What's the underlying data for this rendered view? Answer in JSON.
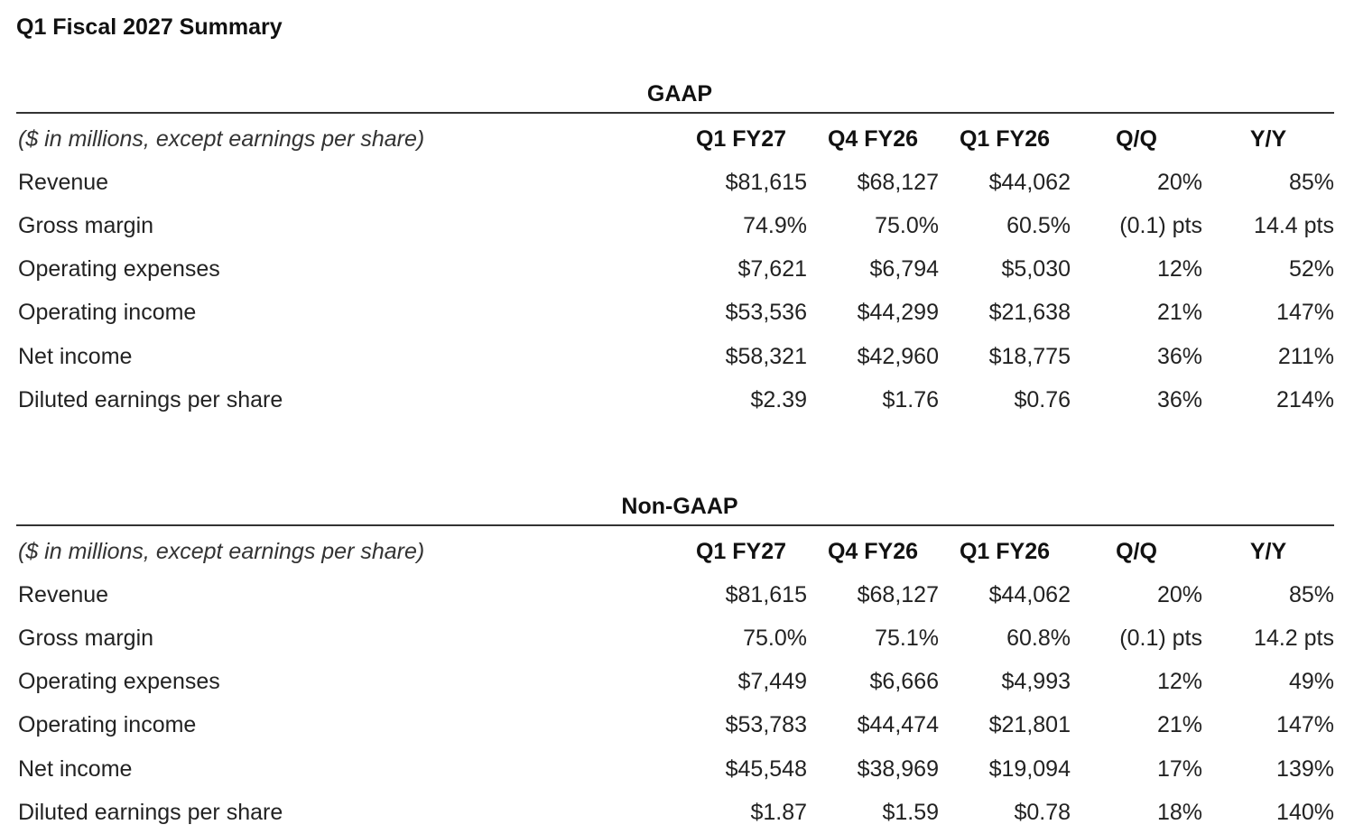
{
  "page_title": "Q1 Fiscal 2027 Summary",
  "sections": [
    {
      "heading": "GAAP",
      "units_label": "($ in millions, except earnings per share)",
      "columns": [
        "Q1 FY27",
        "Q4 FY26",
        "Q1 FY26",
        "Q/Q",
        "Y/Y"
      ],
      "rows": [
        {
          "label": "Revenue",
          "values": [
            "$81,615",
            "$68,127",
            "$44,062",
            "20%",
            "85%"
          ]
        },
        {
          "label": "Gross margin",
          "values": [
            "74.9%",
            "75.0%",
            "60.5%",
            "(0.1) pts",
            "14.4 pts"
          ]
        },
        {
          "label": "Operating expenses",
          "values": [
            "$7,621",
            "$6,794",
            "$5,030",
            "12%",
            "52%"
          ]
        },
        {
          "label": "Operating income",
          "values": [
            "$53,536",
            "$44,299",
            "$21,638",
            "21%",
            "147%"
          ]
        },
        {
          "label": "Net income",
          "values": [
            "$58,321",
            "$42,960",
            "$18,775",
            "36%",
            "211%"
          ]
        },
        {
          "label": "Diluted earnings per share",
          "values": [
            "$2.39",
            "$1.76",
            "$0.76",
            "36%",
            "214%"
          ]
        }
      ]
    },
    {
      "heading": "Non-GAAP",
      "units_label": "($ in millions, except earnings per share)",
      "columns": [
        "Q1 FY27",
        "Q4 FY26",
        "Q1 FY26",
        "Q/Q",
        "Y/Y"
      ],
      "rows": [
        {
          "label": "Revenue",
          "values": [
            "$81,615",
            "$68,127",
            "$44,062",
            "20%",
            "85%"
          ]
        },
        {
          "label": "Gross margin",
          "values": [
            "75.0%",
            "75.1%",
            "60.8%",
            "(0.1) pts",
            "14.2 pts"
          ]
        },
        {
          "label": "Operating expenses",
          "values": [
            "$7,449",
            "$6,666",
            "$4,993",
            "12%",
            "49%"
          ]
        },
        {
          "label": "Operating income",
          "values": [
            "$53,783",
            "$44,474",
            "$21,801",
            "21%",
            "147%"
          ]
        },
        {
          "label": "Net income",
          "values": [
            "$45,548",
            "$38,969",
            "$19,094",
            "17%",
            "139%"
          ]
        },
        {
          "label": "Diluted earnings per share",
          "values": [
            "$1.87",
            "$1.59",
            "$0.78",
            "18%",
            "140%"
          ]
        }
      ]
    }
  ]
}
